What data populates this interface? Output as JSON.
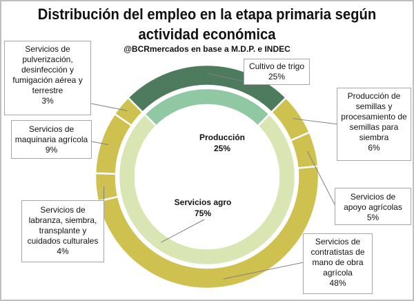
{
  "title_line1": "Distribución del empleo en la etapa primaria según",
  "title_line2": "actividad económica",
  "subtitle": "@BCRmercados  en base a M.D.P. e INDEC",
  "chart_data": {
    "type": "pie",
    "subtype": "nested-donut",
    "title": "Distribución del empleo en la etapa primaria según actividad económica",
    "subtitle": "@BCRmercados  en base a M.D.P. e INDEC",
    "inner_ring": [
      {
        "name": "Producción",
        "label": "25%",
        "value": 25,
        "color": "#8fc8a3"
      },
      {
        "name": "Servicios agro",
        "label": "75%",
        "value": 75,
        "color": "#d9e6b3"
      }
    ],
    "outer_ring": [
      {
        "name": "Cultivo de trigo",
        "label": "25%",
        "value": 25,
        "color": "#4e7a5e"
      },
      {
        "name": "Producción de semillas y procesamiento de semillas para siembra",
        "label": "6%",
        "value": 6,
        "color": "#cfc150"
      },
      {
        "name": "Servicios de apoyo agrícolas",
        "label": "5%",
        "value": 5,
        "color": "#cfc150"
      },
      {
        "name": "Servicios de contratistas de mano de obra agrícola",
        "label": "48%",
        "value": 48,
        "color": "#cfc150"
      },
      {
        "name": "Servicios de labranza, siembra, transplante  y cuidados culturales",
        "label": "4%",
        "value": 4,
        "color": "#cfc150"
      },
      {
        "name": "Servicios de maquinaria agrícola",
        "label": "9%",
        "value": 9,
        "color": "#cfc150"
      },
      {
        "name": "Servicios de pulverización, desinfección y fumigación aérea y terrestre",
        "label": "3%",
        "value": 3,
        "color": "#cfc150"
      }
    ],
    "legend": "none"
  }
}
